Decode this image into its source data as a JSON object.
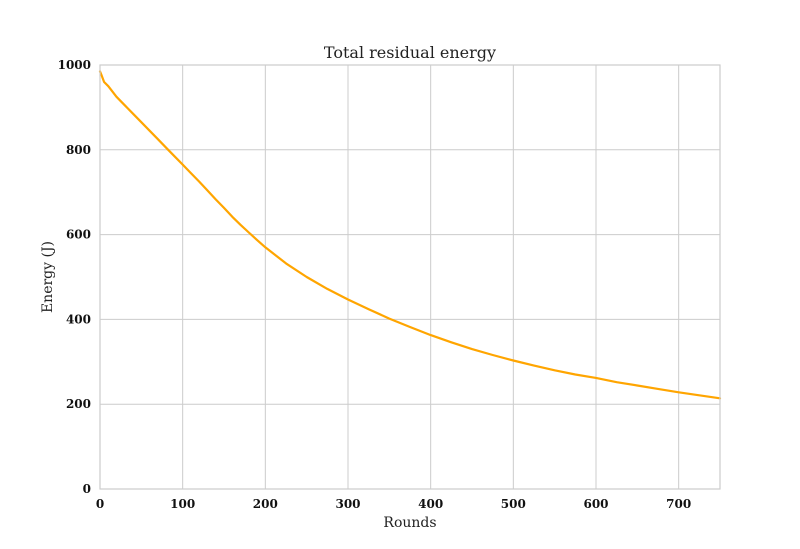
{
  "chart_data": {
    "type": "line",
    "title": "Total residual energy",
    "xlabel": "Rounds",
    "ylabel": "Energy (J)",
    "xlim": [
      0,
      750
    ],
    "ylim": [
      0,
      1000
    ],
    "xticks": [
      0,
      100,
      200,
      300,
      400,
      500,
      600,
      700
    ],
    "yticks": [
      0,
      200,
      400,
      600,
      800,
      1000
    ],
    "grid": true,
    "series": [
      {
        "color": "#FFA500",
        "x": [
          0,
          2,
          5,
          10,
          20,
          30,
          40,
          50,
          60,
          70,
          80,
          90,
          100,
          110,
          120,
          130,
          140,
          150,
          160,
          170,
          180,
          190,
          200,
          225,
          250,
          275,
          300,
          325,
          350,
          375,
          400,
          425,
          450,
          475,
          500,
          525,
          550,
          575,
          600,
          625,
          650,
          675,
          700,
          725,
          750
        ],
        "y": [
          985,
          975,
          960,
          950,
          925,
          905,
          885,
          865,
          845,
          825,
          805,
          785,
          765,
          745,
          725,
          704,
          683,
          663,
          642,
          623,
          605,
          587,
          570,
          532,
          500,
          472,
          447,
          424,
          402,
          382,
          363,
          346,
          330,
          316,
          303,
          291,
          280,
          270,
          262,
          252,
          244,
          236,
          228,
          221,
          214
        ]
      }
    ]
  }
}
